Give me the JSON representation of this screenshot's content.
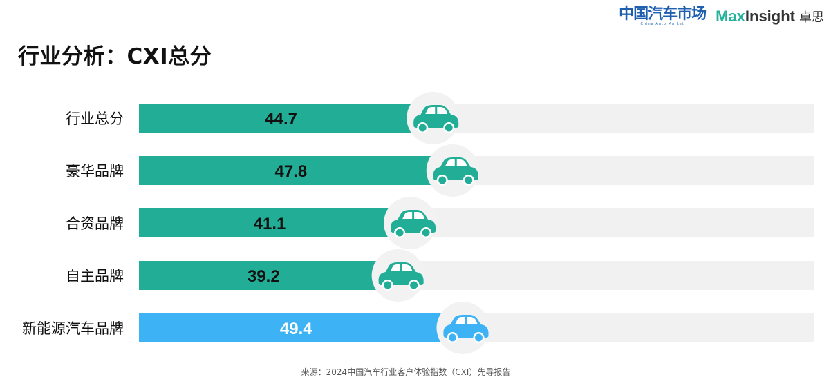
{
  "logos": {
    "cam_cn": "中国汽车市场",
    "cam_en": "China Auto Market",
    "mi_max": "Max",
    "mi_insight": "Insight",
    "mi_cn": "卓思"
  },
  "page_title": "行业分析：CXI总分",
  "source": "来源：2024中国汽车行业客户体验指数（CXI）先导报告",
  "chart_data": {
    "type": "bar",
    "orientation": "horizontal",
    "categories": [
      "行业总分",
      "豪华品牌",
      "合资品牌",
      "自主品牌",
      "新能源汽车品牌"
    ],
    "values": [
      44.7,
      47.8,
      41.1,
      39.2,
      49.4
    ],
    "value_labels": [
      "44.7",
      "47.8",
      "41.1",
      "39.2",
      "49.4"
    ],
    "xlim": [
      0,
      100
    ],
    "grid": false,
    "legend": "none",
    "colors": {
      "default_bar": "#22ae96",
      "highlight_bar": "#3db3f6",
      "track": "#f1f1f1",
      "car_default": "#22ae96",
      "car_highlight": "#3db3f6",
      "default_label_text": "#111111",
      "highlight_label_text": "#ffffff"
    },
    "highlight_index": 4,
    "marker_icon": "car-icon"
  }
}
